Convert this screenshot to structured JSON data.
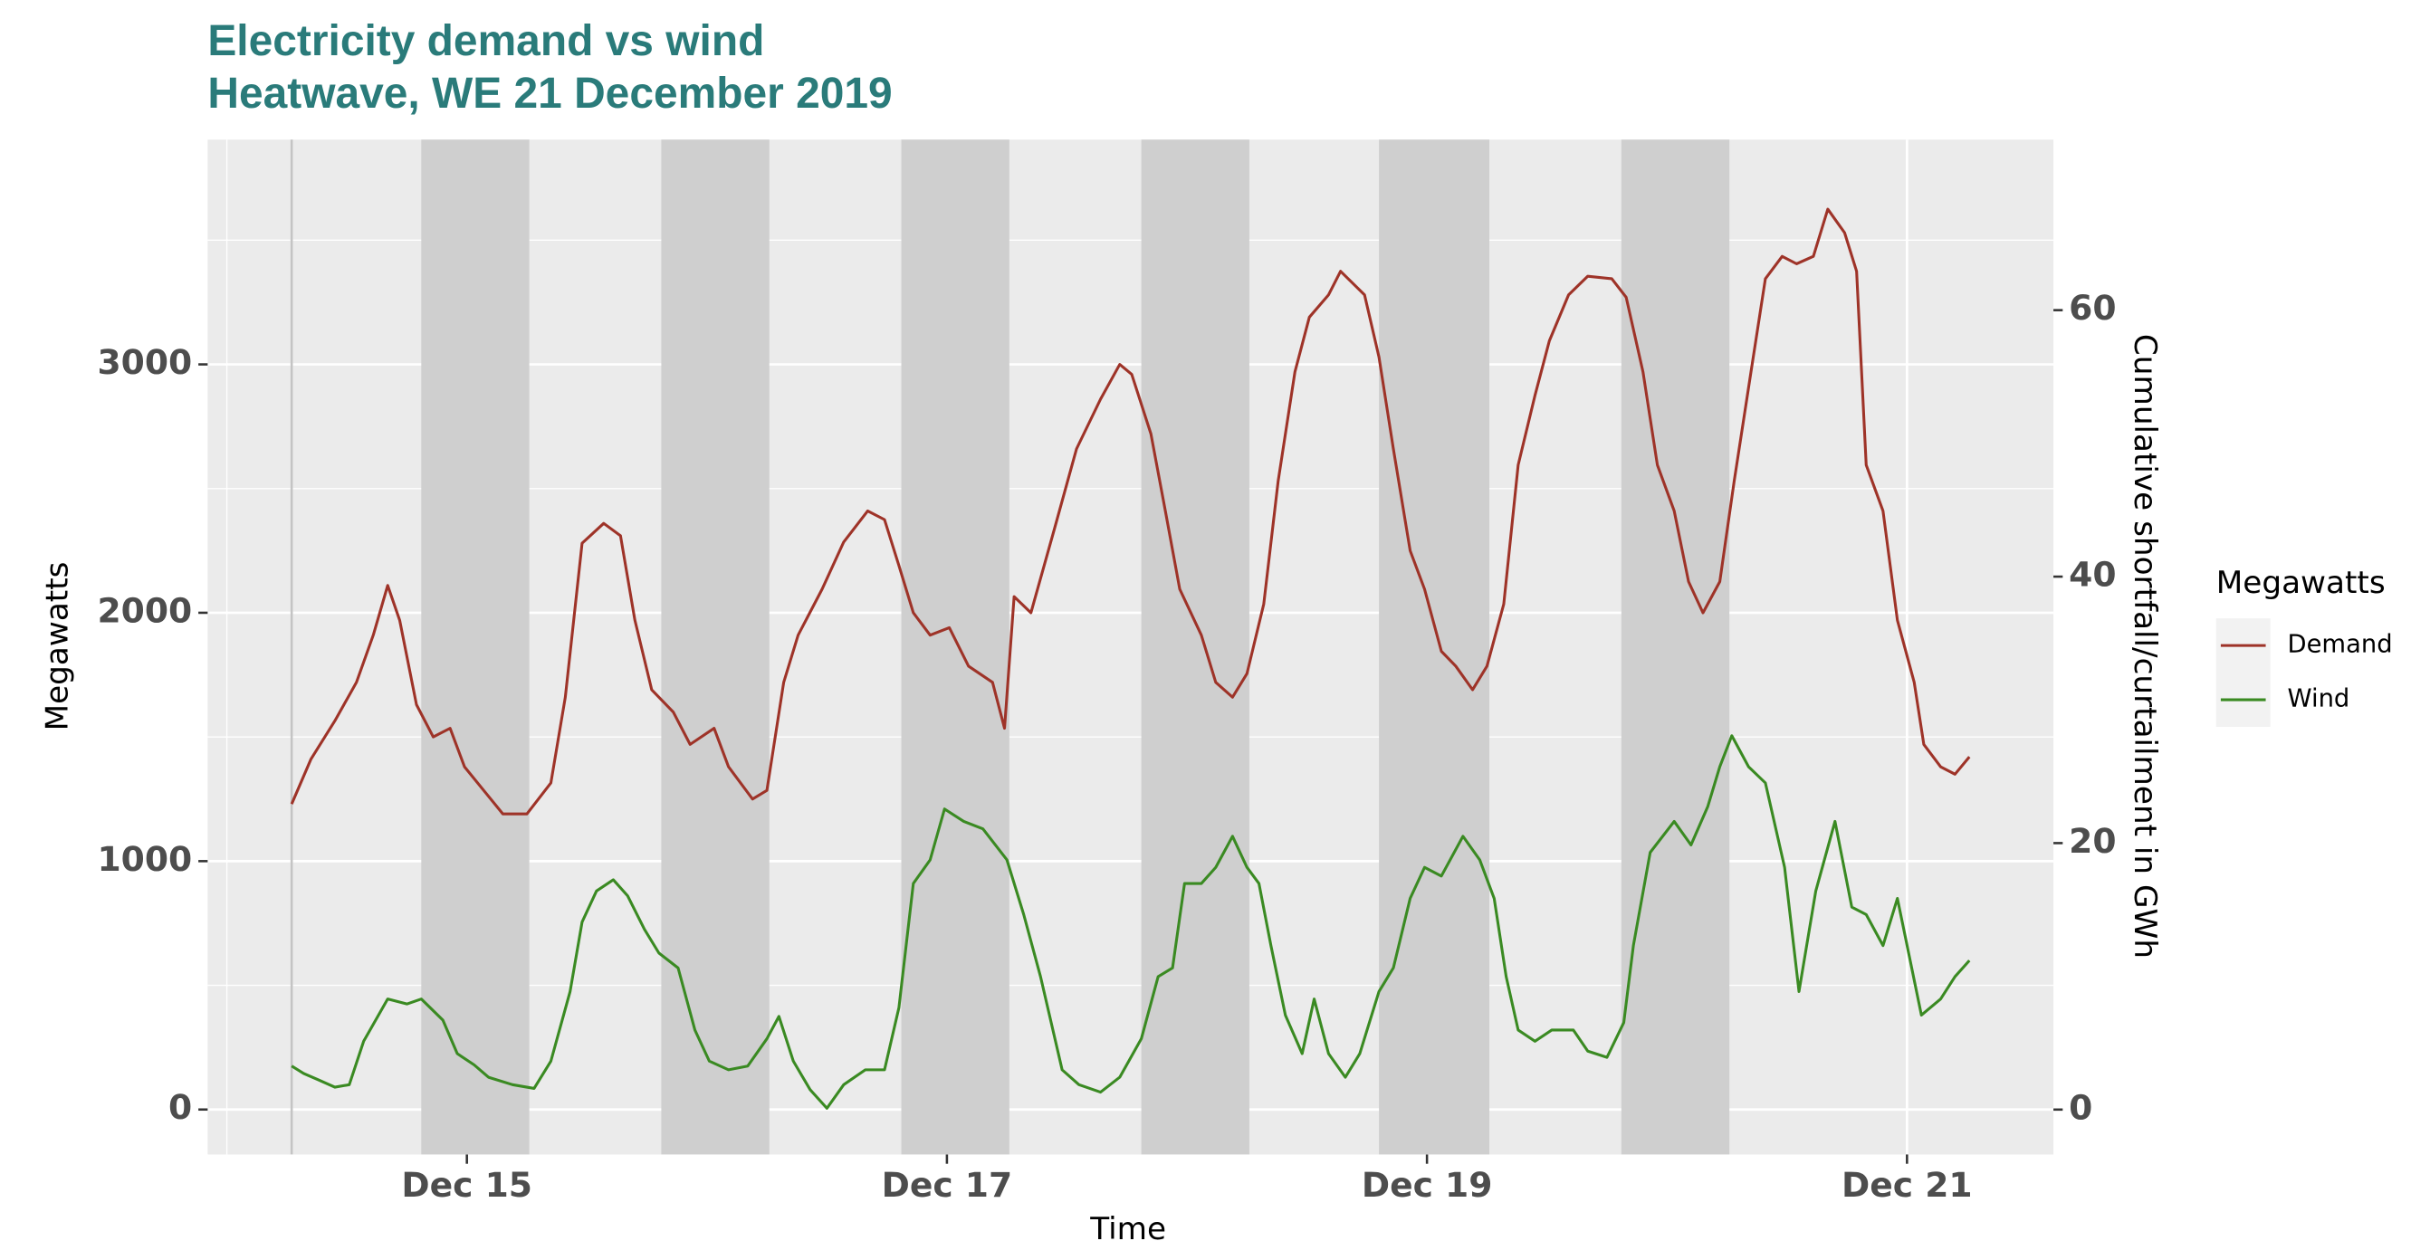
{
  "chart_data": {
    "type": "line",
    "title": "Electricity demand vs wind",
    "subtitle": "Heatwave, WE 21 December 2019",
    "xlabel": "Time",
    "ylabel": "Megawatts",
    "y2label": "Cumulative shortfall/curtailment in GWh",
    "legend_title": "Megawatts",
    "legend": "right",
    "xlim": [
      13.92,
      21.61
    ],
    "xticks": [
      {
        "value": 15,
        "label": "Dec 15"
      },
      {
        "value": 17,
        "label": "Dec 17"
      },
      {
        "value": 19,
        "label": "Dec 19"
      },
      {
        "value": 21,
        "label": "Dec 21"
      }
    ],
    "xminorticks": [
      14,
      16,
      18,
      20
    ],
    "ylim": [
      -181,
      3905
    ],
    "yticks": [
      0,
      1000,
      2000,
      3000
    ],
    "yminorticks": [
      500,
      1500,
      2500,
      3500
    ],
    "y2lim": [
      -3.37,
      72.8
    ],
    "y2ticks": [
      0,
      20,
      40,
      60
    ],
    "grid": true,
    "shaded_periods": [
      [
        14.81,
        15.26
      ],
      [
        15.81,
        16.26
      ],
      [
        16.81,
        17.26
      ],
      [
        17.81,
        18.26
      ],
      [
        18.8,
        19.26
      ],
      [
        19.81,
        20.26
      ]
    ],
    "vline": 14.27,
    "series": [
      {
        "name": "Demand",
        "color": "#9e3328",
        "x": [
          14.27,
          14.35,
          14.45,
          14.54,
          14.61,
          14.67,
          14.72,
          14.79,
          14.86,
          14.93,
          14.99,
          15.07,
          15.15,
          15.25,
          15.35,
          15.41,
          15.48,
          15.57,
          15.64,
          15.7,
          15.77,
          15.86,
          15.93,
          16.03,
          16.09,
          16.19,
          16.25,
          16.32,
          16.38,
          16.48,
          16.57,
          16.67,
          16.74,
          16.8,
          16.86,
          16.93,
          17.01,
          17.09,
          17.19,
          17.24,
          17.28,
          17.35,
          17.45,
          17.54,
          17.64,
          17.72,
          17.77,
          17.85,
          17.91,
          17.97,
          18.06,
          18.12,
          18.19,
          18.25,
          18.32,
          18.38,
          18.45,
          18.51,
          18.59,
          18.64,
          18.74,
          18.8,
          18.86,
          18.93,
          18.99,
          19.06,
          19.12,
          19.19,
          19.25,
          19.32,
          19.38,
          19.45,
          19.51,
          19.59,
          19.67,
          19.77,
          19.83,
          19.9,
          19.96,
          20.03,
          20.09,
          20.15,
          20.22,
          20.28,
          20.35,
          20.41,
          20.48,
          20.54,
          20.61,
          20.67,
          20.74,
          20.79,
          20.83,
          20.9,
          20.96,
          21.03,
          21.07,
          21.14,
          21.2,
          21.26
        ],
        "values": [
          1230,
          1410,
          1565,
          1720,
          1910,
          2110,
          1970,
          1630,
          1500,
          1535,
          1380,
          1285,
          1190,
          1190,
          1315,
          1660,
          2280,
          2360,
          2310,
          1970,
          1690,
          1600,
          1470,
          1535,
          1380,
          1250,
          1285,
          1720,
          1910,
          2095,
          2285,
          2410,
          2375,
          2190,
          2000,
          1910,
          1940,
          1785,
          1720,
          1535,
          2065,
          2000,
          2345,
          2660,
          2860,
          3000,
          2960,
          2720,
          2410,
          2095,
          1910,
          1720,
          1660,
          1755,
          2035,
          2530,
          2970,
          3190,
          3280,
          3375,
          3280,
          3030,
          2660,
          2250,
          2095,
          1845,
          1785,
          1690,
          1785,
          2035,
          2595,
          2875,
          3095,
          3280,
          3355,
          3345,
          3270,
          2970,
          2595,
          2410,
          2125,
          2000,
          2125,
          2530,
          2970,
          3345,
          3435,
          3405,
          3435,
          3625,
          3530,
          3375,
          2595,
          2410,
          1970,
          1720,
          1470,
          1380,
          1350,
          1420
        ]
      },
      {
        "name": "Wind",
        "color": "#3a8a22",
        "x": [
          14.27,
          14.32,
          14.38,
          14.45,
          14.51,
          14.57,
          14.67,
          14.75,
          14.81,
          14.9,
          14.96,
          15.03,
          15.09,
          15.19,
          15.28,
          15.35,
          15.43,
          15.48,
          15.54,
          15.61,
          15.67,
          15.74,
          15.8,
          15.88,
          15.95,
          16.01,
          16.09,
          16.17,
          16.25,
          16.3,
          16.36,
          16.43,
          16.5,
          16.57,
          16.66,
          16.74,
          16.8,
          16.86,
          16.93,
          16.99,
          17.07,
          17.15,
          17.25,
          17.32,
          17.39,
          17.48,
          17.55,
          17.64,
          17.72,
          17.81,
          17.88,
          17.94,
          17.99,
          18.06,
          18.12,
          18.19,
          18.25,
          18.3,
          18.35,
          18.41,
          18.48,
          18.53,
          18.59,
          18.66,
          18.72,
          18.8,
          18.86,
          18.93,
          18.99,
          19.06,
          19.15,
          19.22,
          19.28,
          19.33,
          19.38,
          19.45,
          19.52,
          19.61,
          19.67,
          19.75,
          19.82,
          19.86,
          19.93,
          20.03,
          20.1,
          20.17,
          20.22,
          20.27,
          20.34,
          20.41,
          20.49,
          20.55,
          20.62,
          20.7,
          20.77,
          20.83,
          20.9,
          20.96,
          21.06,
          21.14,
          21.2,
          21.26
        ],
        "values": [
          175,
          145,
          120,
          90,
          100,
          275,
          445,
          425,
          445,
          360,
          225,
          180,
          130,
          100,
          85,
          195,
          475,
          755,
          880,
          925,
          860,
          725,
          630,
          570,
          320,
          195,
          160,
          175,
          285,
          375,
          195,
          80,
          5,
          100,
          160,
          160,
          410,
          910,
          1005,
          1210,
          1160,
          1130,
          1005,
          785,
          535,
          160,
          100,
          70,
          130,
          285,
          535,
          570,
          910,
          910,
          975,
          1100,
          975,
          910,
          660,
          380,
          225,
          445,
          225,
          130,
          225,
          475,
          570,
          850,
          975,
          940,
          1100,
          1005,
          850,
          535,
          320,
          275,
          320,
          320,
          235,
          210,
          350,
          660,
          1035,
          1160,
          1065,
          1220,
          1380,
          1505,
          1380,
          1315,
          975,
          475,
          880,
          1160,
          815,
          785,
          660,
          850,
          380,
          445,
          535,
          600
        ]
      }
    ]
  }
}
